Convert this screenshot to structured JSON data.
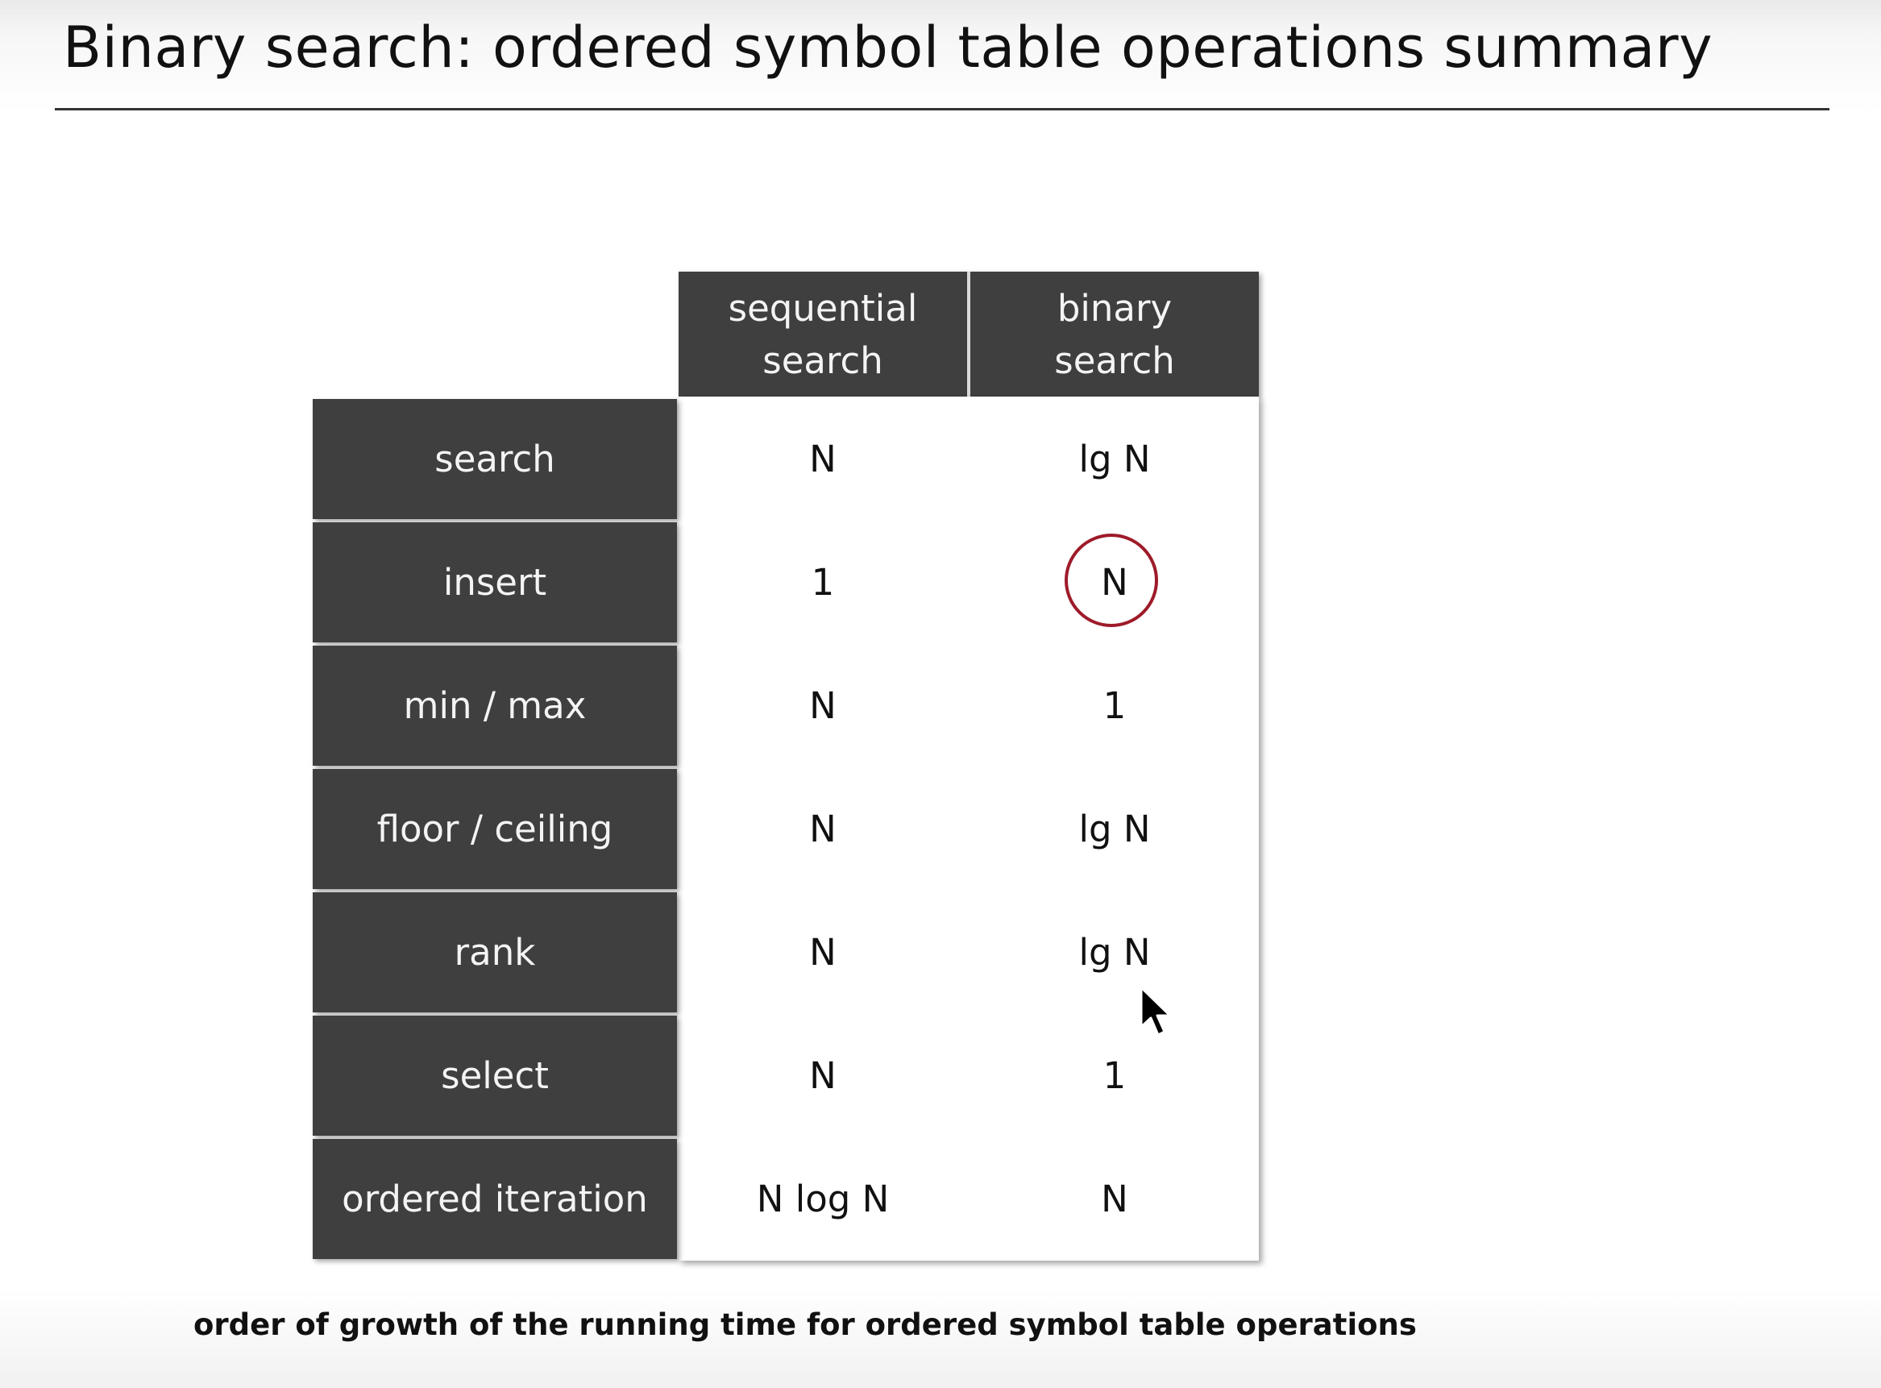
{
  "title": "Binary search:  ordered symbol table operations summary",
  "table": {
    "columns": [
      "sequential\nsearch",
      "binary\nsearch"
    ],
    "rows": [
      {
        "operation": "search",
        "sequential": "N",
        "binary": "lg N"
      },
      {
        "operation": "insert",
        "sequential": "1",
        "binary": "N"
      },
      {
        "operation": "min / max",
        "sequential": "N",
        "binary": "1"
      },
      {
        "operation": "floor / ceiling",
        "sequential": "N",
        "binary": "lg N"
      },
      {
        "operation": "rank",
        "sequential": "N",
        "binary": "lg N"
      },
      {
        "operation": "select",
        "sequential": "N",
        "binary": "1"
      },
      {
        "operation": "ordered iteration",
        "sequential": "N log N",
        "binary": "N"
      }
    ],
    "highlighted_cell": {
      "row": "insert",
      "column": "binary search"
    }
  },
  "caption": "order of growth of the running time for ordered symbol table operations",
  "colors": {
    "header_bg": "#3f3f3f",
    "header_text": "#f4f4f4",
    "highlight_circle": "#9e1b2a"
  },
  "icons": {
    "cursor": "mouse-pointer-icon"
  }
}
